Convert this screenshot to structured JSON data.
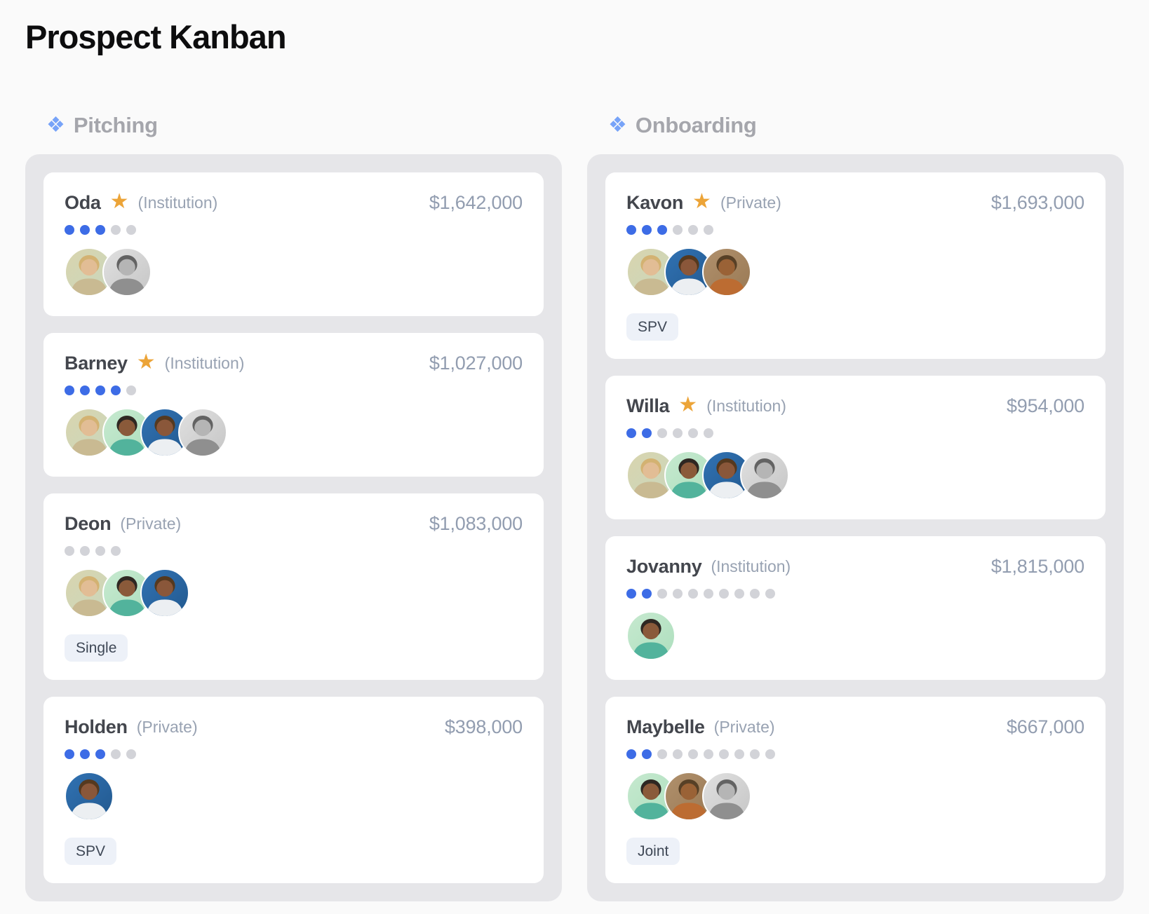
{
  "page": {
    "title": "Prospect Kanban"
  },
  "icons": {
    "diamond_glyph": "❖",
    "star_glyph": "★"
  },
  "colors": {
    "page_bg": "#fafafa",
    "column_bg": "#e6e6e9",
    "card_bg": "#ffffff",
    "title_text": "#0d0d0e",
    "column_title_text": "#a5a6ac",
    "diamond_blue": "#77a3f8",
    "name_text": "#43464d",
    "type_text": "#98a2b2",
    "amount_text": "#929db0",
    "star_orange": "#eca438",
    "dot_filled_blue": "#3d6ce6",
    "dot_empty_gray": "#d2d3d8",
    "tag_bg": "#edf1f8",
    "tag_text": "#3f4856"
  },
  "columns": [
    {
      "name": "Pitching",
      "cards": [
        {
          "name": "Oda",
          "starred": true,
          "type": "(Institution)",
          "amount": "$1,642,000",
          "dots": {
            "filled": 3,
            "total": 5
          },
          "avatars": [
            "blonde-person",
            "bw-man"
          ],
          "tag": null
        },
        {
          "name": "Barney",
          "starred": true,
          "type": "(Institution)",
          "amount": "$1,027,000",
          "dots": {
            "filled": 4,
            "total": 5
          },
          "avatars": [
            "blonde-person",
            "floral-dress-woman",
            "blue-bg-woman",
            "bw-man"
          ],
          "tag": null
        },
        {
          "name": "Deon",
          "starred": false,
          "type": "(Private)",
          "amount": "$1,083,000",
          "dots": {
            "filled": 0,
            "total": 4
          },
          "avatars": [
            "blonde-person",
            "floral-dress-woman",
            "blue-bg-woman"
          ],
          "tag": "Single"
        },
        {
          "name": "Holden",
          "starred": false,
          "type": "(Private)",
          "amount": "$398,000",
          "dots": {
            "filled": 3,
            "total": 5
          },
          "avatars": [
            "blue-bg-woman"
          ],
          "tag": "SPV"
        }
      ]
    },
    {
      "name": "Onboarding",
      "cards": [
        {
          "name": "Kavon",
          "starred": true,
          "type": "(Private)",
          "amount": "$1,693,000",
          "dots": {
            "filled": 3,
            "total": 6
          },
          "avatars": [
            "blonde-person",
            "blue-bg-woman",
            "tan-bg-woman"
          ],
          "tag": "SPV"
        },
        {
          "name": "Willa",
          "starred": true,
          "type": "(Institution)",
          "amount": "$954,000",
          "dots": {
            "filled": 2,
            "total": 6
          },
          "avatars": [
            "blonde-person",
            "floral-dress-woman",
            "blue-bg-woman",
            "bw-man"
          ],
          "tag": null
        },
        {
          "name": "Jovanny",
          "starred": false,
          "type": "(Institution)",
          "amount": "$1,815,000",
          "dots": {
            "filled": 2,
            "total": 10
          },
          "avatars": [
            "floral-dress-woman"
          ],
          "tag": null
        },
        {
          "name": "Maybelle",
          "starred": false,
          "type": "(Private)",
          "amount": "$667,000",
          "dots": {
            "filled": 2,
            "total": 10
          },
          "avatars": [
            "floral-dress-woman",
            "tan-bg-woman",
            "bw-man"
          ],
          "tag": "Joint"
        }
      ]
    }
  ],
  "avatar_styles": {
    "blonde-person": {
      "bg": "#d9d5ae",
      "bg2": "#c9d6bd",
      "skin": "#e2bd95",
      "hair": "#d3b272",
      "shirt": "#c9ba92"
    },
    "floral-dress-woman": {
      "bg": "#c6e9cf",
      "bg2": "#aedfbe",
      "skin": "#8a5a3a",
      "hair": "#2e2722",
      "shirt": "#52b39c"
    },
    "blue-bg-woman": {
      "bg": "#3172b3",
      "bg2": "#22598f",
      "skin": "#8a573a",
      "hair": "#55391f",
      "shirt": "#eceff2"
    },
    "bw-man": {
      "bg": "#e0e0e0",
      "bg2": "#c6c6c6",
      "skin": "#b5b5b5",
      "hair": "#636363",
      "shirt": "#8f8f8f"
    },
    "tan-bg-woman": {
      "bg": "#b0906c",
      "bg2": "#9a7a55",
      "skin": "#9a6236",
      "hair": "#574026",
      "shirt": "#bc6c32"
    }
  }
}
